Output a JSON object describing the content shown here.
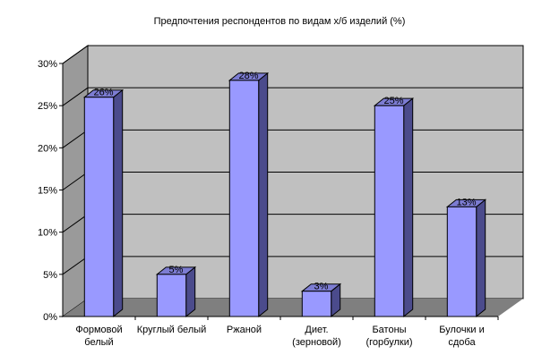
{
  "chart_data": {
    "type": "bar",
    "title": "Предпочтения респондентов по видам х/б изделий (%)",
    "categories": [
      [
        "Формовой",
        "белый"
      ],
      [
        "Круглый белый"
      ],
      [
        "Ржаной"
      ],
      [
        "Диет.",
        "(зерновой)"
      ],
      [
        "Батоны",
        "(горбулки)"
      ],
      [
        "Булочки и",
        "сдоба"
      ]
    ],
    "values": [
      26,
      5,
      28,
      3,
      25,
      13
    ],
    "data_labels": [
      "26%",
      "5%",
      "28%",
      "3%",
      "25%",
      "13%"
    ],
    "y_ticks": [
      "0%",
      "5%",
      "10%",
      "15%",
      "20%",
      "25%",
      "30%"
    ],
    "ylim": [
      0,
      30
    ],
    "grid": true,
    "legend": "none",
    "colors": {
      "bar_front": "#9999ff",
      "bar_side": "#4b4b8c",
      "bar_top": "#7c7cd2",
      "back_wall": "#c0c0c0",
      "side_wall": "#9a9a9a",
      "floor": "#7f7f7f"
    }
  }
}
